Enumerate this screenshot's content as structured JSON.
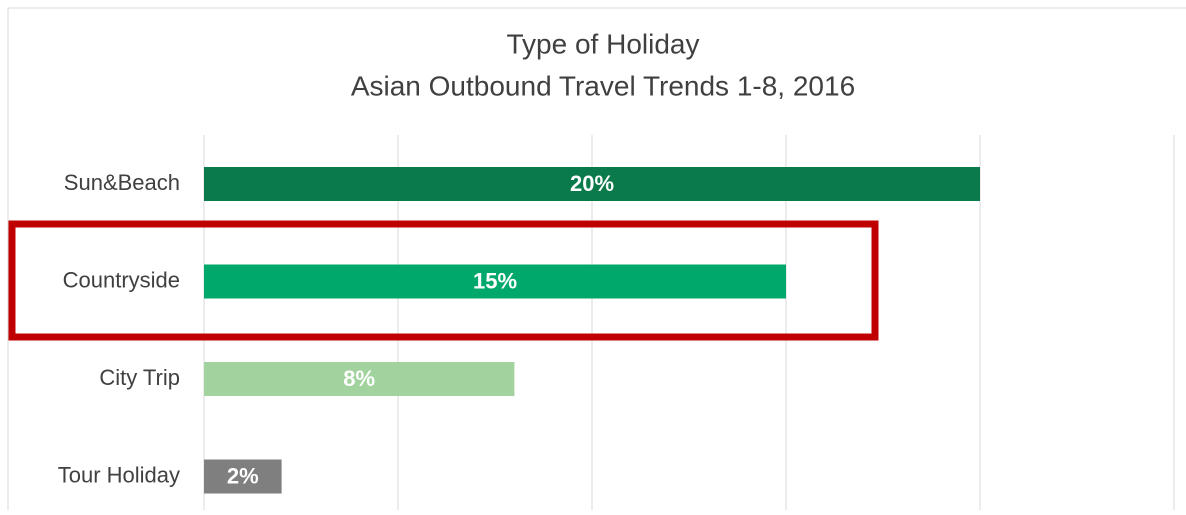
{
  "chart_data": {
    "type": "bar",
    "orientation": "horizontal",
    "title": "Type of Holiday",
    "subtitle": "Asian Outbound Travel Trends 1-8, 2016",
    "categories": [
      "Sun&Beach",
      "Countryside",
      "City Trip",
      "Tour Holiday"
    ],
    "values": [
      20,
      15,
      8,
      2
    ],
    "value_labels": [
      "20%",
      "15%",
      "8%",
      "2%"
    ],
    "colors": [
      "#0b7a4b",
      "#00a86b",
      "#a2d39f",
      "#7f7f7f"
    ],
    "xlim": [
      0,
      25
    ],
    "xticks": [
      0,
      5,
      10,
      15,
      20,
      25
    ],
    "grid": true
  }
}
